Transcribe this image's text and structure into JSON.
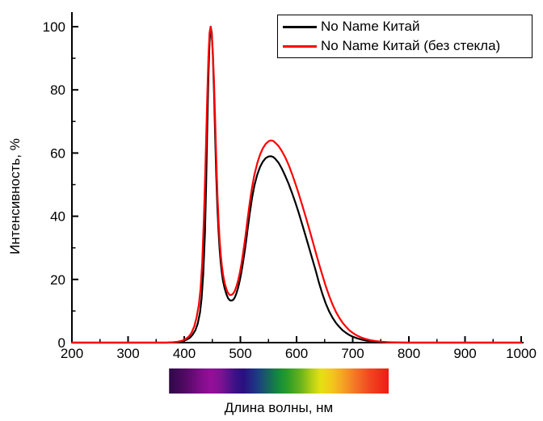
{
  "chart_data": {
    "type": "line",
    "title": "",
    "xlabel": "Длина волны, нм",
    "ylabel": "Интенсивность, %",
    "xlim": [
      200,
      1000
    ],
    "ylim": [
      0,
      100
    ],
    "grid": false,
    "legend_position": "top-right",
    "x_ticks": [
      200,
      300,
      400,
      500,
      600,
      700,
      800,
      900,
      1000
    ],
    "x_minor_ticks": [
      250,
      350,
      450,
      550,
      650,
      750,
      850,
      950
    ],
    "y_ticks": [
      0,
      20,
      40,
      60,
      80,
      100
    ],
    "y_minor_ticks": [
      10,
      30,
      50,
      70,
      90
    ],
    "axis_color": "#000000",
    "series": [
      {
        "name": "No Name Китай",
        "color": "#000000",
        "x": [
          200,
          370,
          382,
          390,
          398,
          404,
          410,
          415,
          420,
          424,
          428,
          431,
          434,
          437,
          439,
          441,
          443,
          445,
          447,
          449,
          451,
          453,
          455,
          457,
          459,
          461,
          463,
          465,
          467,
          469,
          472,
          475,
          478,
          481,
          484,
          487,
          490,
          493,
          496,
          499,
          502,
          505,
          509,
          513,
          517,
          521,
          525,
          530,
          535,
          540,
          545,
          550,
          554,
          558,
          562,
          568,
          574,
          580,
          586,
          592,
          598,
          604,
          610,
          616,
          622,
          628,
          634,
          640,
          646,
          652,
          658,
          664,
          670,
          676,
          682,
          688,
          694,
          700,
          708,
          716,
          724,
          732,
          740,
          750,
          760,
          770,
          780,
          790,
          800,
          1000
        ],
        "y": [
          0,
          0,
          0.1,
          0.2,
          0.5,
          0.9,
          1.5,
          2.5,
          4,
          6,
          9.5,
          14,
          22,
          35,
          50,
          68,
          84,
          95,
          100,
          98,
          91,
          80,
          66,
          53,
          43,
          35.5,
          29.5,
          25.2,
          22,
          19.5,
          17.2,
          15.4,
          14.1,
          13.4,
          13.3,
          13.5,
          14.3,
          15.6,
          17.4,
          19.7,
          22.5,
          25.8,
          30.6,
          36,
          41.3,
          46,
          49.8,
          53.2,
          55.6,
          57.3,
          58.4,
          58.9,
          59,
          58.8,
          58.2,
          56.9,
          55,
          52.7,
          50.2,
          47.4,
          44.3,
          41,
          37.5,
          33.9,
          30.2,
          26.5,
          22.9,
          18.9,
          15.4,
          12.4,
          9.9,
          7.9,
          6.3,
          5,
          3.9,
          3.1,
          2.4,
          1.9,
          1.35,
          0.95,
          0.65,
          0.45,
          0.3,
          0.2,
          0.12,
          0.07,
          0.03,
          0.01,
          0,
          0
        ]
      },
      {
        "name": "No Name Китай (без стекла)",
        "color": "#ff0000",
        "x": [
          200,
          368,
          380,
          388,
          396,
          402,
          408,
          413,
          418,
          422,
          426,
          429,
          432,
          435,
          437,
          439,
          441,
          443,
          445,
          447,
          449,
          451,
          453,
          455,
          457,
          459,
          461,
          463,
          465,
          467,
          469,
          472,
          475,
          478,
          481,
          484,
          487,
          490,
          493,
          496,
          499,
          502,
          505,
          509,
          513,
          517,
          521,
          525,
          530,
          535,
          540,
          545,
          550,
          554,
          558,
          562,
          568,
          574,
          580,
          586,
          592,
          598,
          604,
          610,
          616,
          622,
          628,
          634,
          640,
          646,
          652,
          658,
          664,
          670,
          676,
          682,
          688,
          694,
          700,
          708,
          716,
          724,
          732,
          740,
          750,
          760,
          770,
          780,
          790,
          800,
          1000
        ],
        "y": [
          0,
          0,
          0.12,
          0.25,
          0.6,
          1.1,
          1.9,
          3.1,
          5.2,
          8,
          12,
          17,
          25,
          39,
          51,
          64,
          78,
          90,
          98,
          100,
          97,
          92,
          83,
          71,
          58.5,
          47.5,
          39,
          32.5,
          27.8,
          24.3,
          21.6,
          18.9,
          17,
          15.7,
          15.1,
          15.1,
          15.5,
          16.4,
          17.8,
          19.7,
          22.1,
          25.1,
          28.6,
          33.7,
          39.3,
          44.7,
          49.4,
          53.2,
          56.8,
          59.5,
          61.5,
          62.9,
          63.7,
          64,
          63.9,
          63.3,
          62.2,
          60.6,
          58.6,
          56.2,
          53.4,
          50.3,
          47,
          43.6,
          40,
          36.3,
          32.5,
          28.7,
          24.9,
          21.3,
          17.9,
          14.8,
          12.1,
          9.8,
          7.9,
          6.3,
          5,
          3.9,
          3.1,
          2.2,
          1.55,
          1.1,
          0.75,
          0.5,
          0.3,
          0.18,
          0.1,
          0.05,
          0.02,
          0,
          0
        ]
      }
    ],
    "spectrum_bar": {
      "x_start_nm": 373,
      "x_end_nm": 764,
      "gradient": [
        [
          0.0,
          "#2f0848"
        ],
        [
          0.07,
          "#4f0a62"
        ],
        [
          0.14,
          "#7c0d88"
        ],
        [
          0.19,
          "#950f98"
        ],
        [
          0.24,
          "#7a1292"
        ],
        [
          0.3,
          "#3d1186"
        ],
        [
          0.34,
          "#2a1080"
        ],
        [
          0.4,
          "#1d3a84"
        ],
        [
          0.45,
          "#17635f"
        ],
        [
          0.5,
          "#158c3c"
        ],
        [
          0.54,
          "#2b9c28"
        ],
        [
          0.6,
          "#6ab31e"
        ],
        [
          0.65,
          "#b5cf16"
        ],
        [
          0.69,
          "#e4e112"
        ],
        [
          0.74,
          "#f2c91c"
        ],
        [
          0.79,
          "#f4a424"
        ],
        [
          0.85,
          "#f37426"
        ],
        [
          0.92,
          "#f0431f"
        ],
        [
          1.0,
          "#ed1c15"
        ]
      ]
    }
  },
  "legend": {
    "items": [
      {
        "label": "No Name Китай",
        "color": "#000000"
      },
      {
        "label": "No Name Китай (без стекла)",
        "color": "#ff0000"
      }
    ]
  }
}
